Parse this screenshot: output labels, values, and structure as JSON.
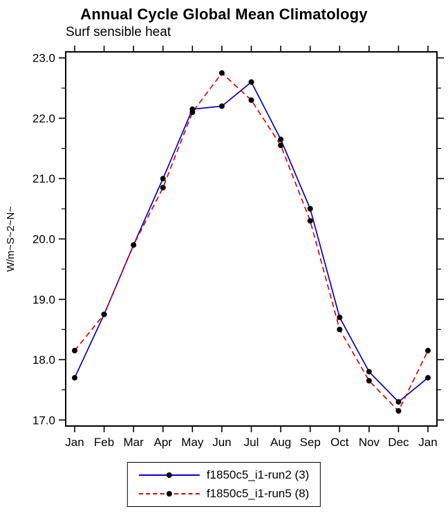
{
  "title": "Annual Cycle Global Mean Climatology",
  "subtitle": "Surf sensible heat",
  "ylabel": "W/m~S~2~N~",
  "colors": {
    "axis": "#000000",
    "series1": "#0000cd",
    "series2": "#dc0000",
    "marker": "#000000"
  },
  "chart_data": {
    "type": "line",
    "title": "Annual Cycle Global Mean Climatology",
    "subtitle": "Surf sensible heat",
    "xlabel": "",
    "ylabel": "W/m~S~2~N~",
    "categories": [
      "Jan",
      "Feb",
      "Mar",
      "Apr",
      "May",
      "Jun",
      "Jul",
      "Aug",
      "Sep",
      "Oct",
      "Nov",
      "Dec",
      "Jan"
    ],
    "series": [
      {
        "name": "f1850c5_i1-run2 (3)",
        "color": "#0000cd",
        "style": "solid",
        "marker": "circle",
        "marker_color": "#000000",
        "values": [
          17.7,
          18.75,
          19.9,
          21.0,
          22.15,
          22.2,
          22.6,
          21.65,
          20.5,
          18.7,
          17.8,
          17.3,
          17.7
        ]
      },
      {
        "name": "f1850c5_i1-run5 (8)",
        "color": "#dc0000",
        "style": "dashed",
        "marker": "circle",
        "marker_color": "#000000",
        "values": [
          18.15,
          18.75,
          19.9,
          20.85,
          22.1,
          22.75,
          22.3,
          21.55,
          20.3,
          18.5,
          17.65,
          17.15,
          18.15
        ]
      }
    ],
    "ylim": [
      17.0,
      23.0
    ],
    "yticks": [
      17.0,
      18.0,
      19.0,
      20.0,
      21.0,
      22.0,
      23.0
    ],
    "ytick_format": "one_decimal",
    "minor_tick_step": 0.5,
    "grid": false,
    "legend_position": "bottom"
  }
}
